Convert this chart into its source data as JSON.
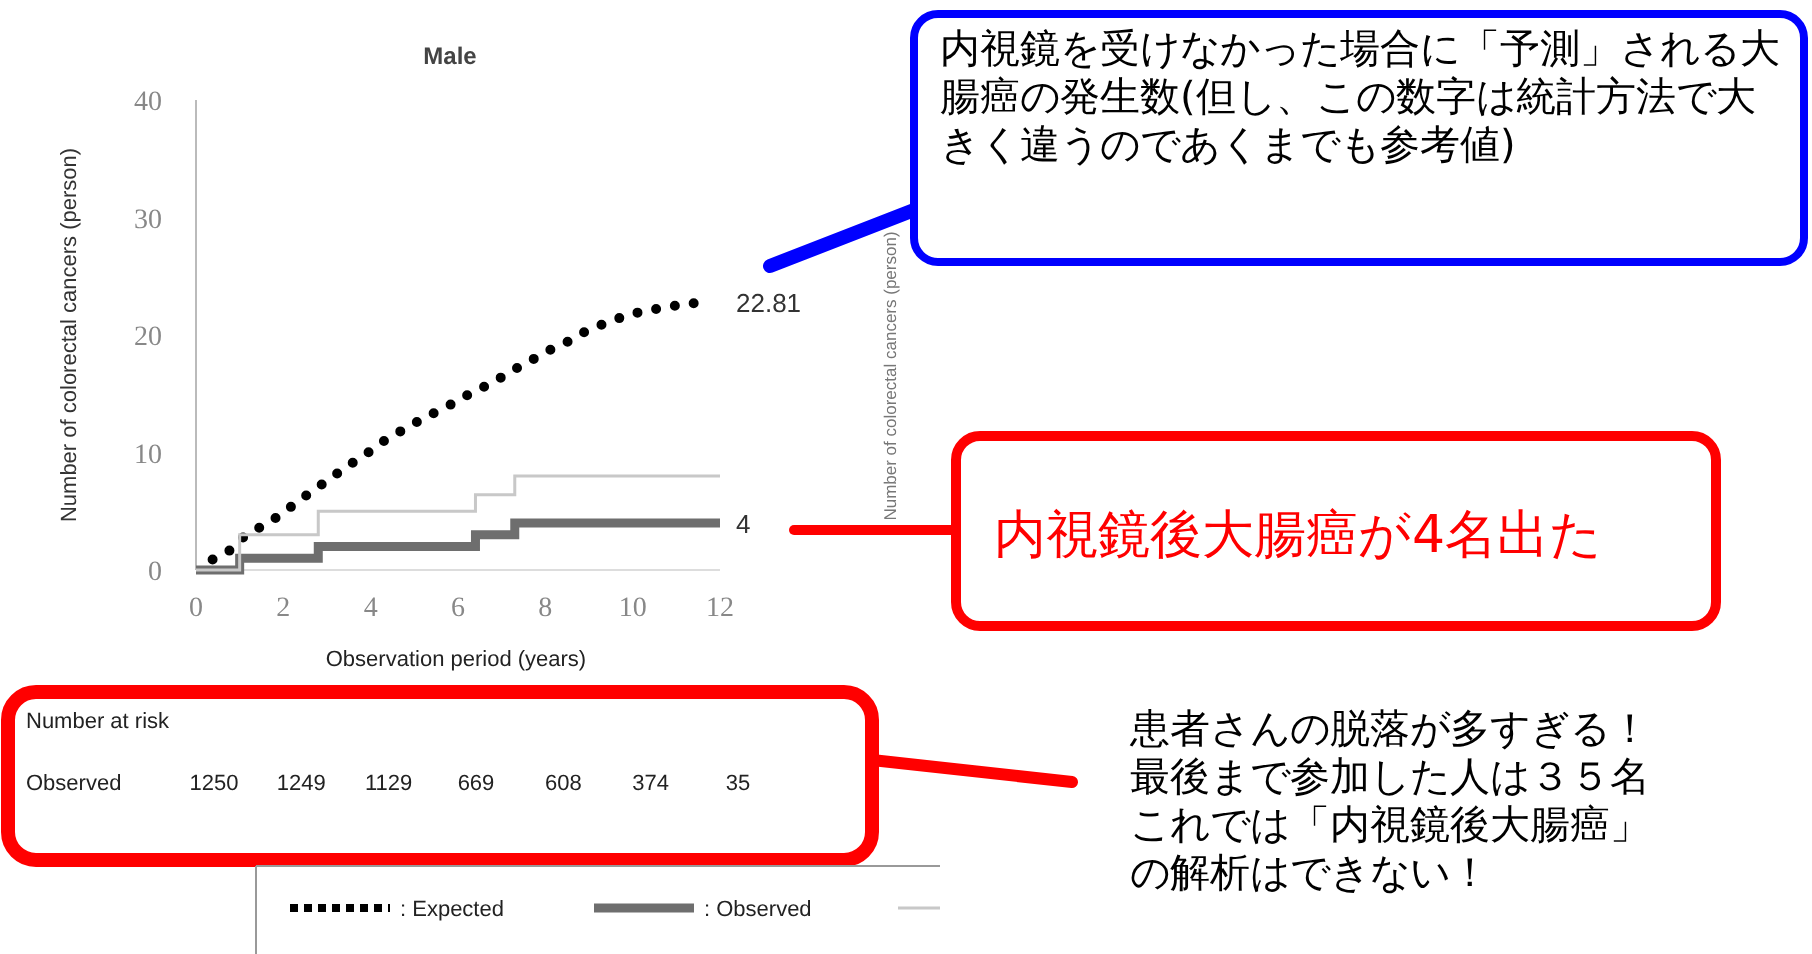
{
  "chart_data": {
    "type": "line",
    "title": "Male",
    "xlabel": "Observation period (years)",
    "ylabel": "Number of colorectal cancers (person)",
    "xlim": [
      0,
      12
    ],
    "ylim": [
      0,
      40
    ],
    "xticks": [
      0,
      2,
      4,
      6,
      8,
      10,
      12
    ],
    "yticks": [
      0,
      10,
      20,
      30,
      40
    ],
    "grid": false,
    "legend": "bottom",
    "marker": "none",
    "series": [
      {
        "name": ": Expected",
        "color": "#000000",
        "line_style": "dotted",
        "x": [
          0.38,
          0.79,
          1.14,
          1.55,
          1.94,
          2.32,
          2.7,
          3.08,
          3.49,
          3.87,
          4.27,
          4.68,
          5.11,
          5.52,
          5.95,
          6.36,
          6.78,
          7.2,
          7.61,
          8.03,
          8.45,
          8.87,
          9.3,
          9.74,
          10.2,
          10.66,
          11.16,
          11.62
        ],
        "values": [
          0.9,
          1.7,
          3.0,
          3.8,
          4.7,
          5.8,
          6.8,
          7.8,
          8.9,
          9.8,
          10.9,
          11.8,
          12.7,
          13.5,
          14.3,
          15.2,
          15.9,
          16.9,
          17.7,
          18.6,
          19.3,
          20.2,
          20.9,
          21.5,
          22.0,
          22.3,
          22.6,
          22.81
        ]
      },
      {
        "name": ": Observed",
        "color": "#6e6e6e",
        "type": "step",
        "line_style": "solid",
        "x": [
          0,
          1.0,
          2.8,
          6.4,
          7.3,
          12
        ],
        "values": [
          0,
          1,
          2,
          3,
          4,
          4
        ]
      },
      {
        "color": "#c8c8c8",
        "type": "step",
        "line_style": "solid",
        "x": [
          0,
          1.0,
          2.8,
          6.4,
          7.3,
          12
        ],
        "values": [
          0,
          3,
          5,
          6.4,
          8,
          8
        ]
      }
    ],
    "annotations": [
      "22.81",
      "4",
      "内視鏡を受けなかった場合に「予測」される大腸癌の発生数(但し、この数字は統計方法で大きく違うのであくまでも参考値)",
      "内視鏡後大腸癌が4名出た",
      "患者さんの脱落が多すぎる！最後まで参加した人は３５名これでは「内視鏡後大腸癌」の解析はできない！",
      "Number at risk",
      "Observed",
      "1250",
      "1249",
      "1129",
      "669",
      "608",
      "374",
      "35",
      "Number of colorectal cancers (person)"
    ]
  }
}
